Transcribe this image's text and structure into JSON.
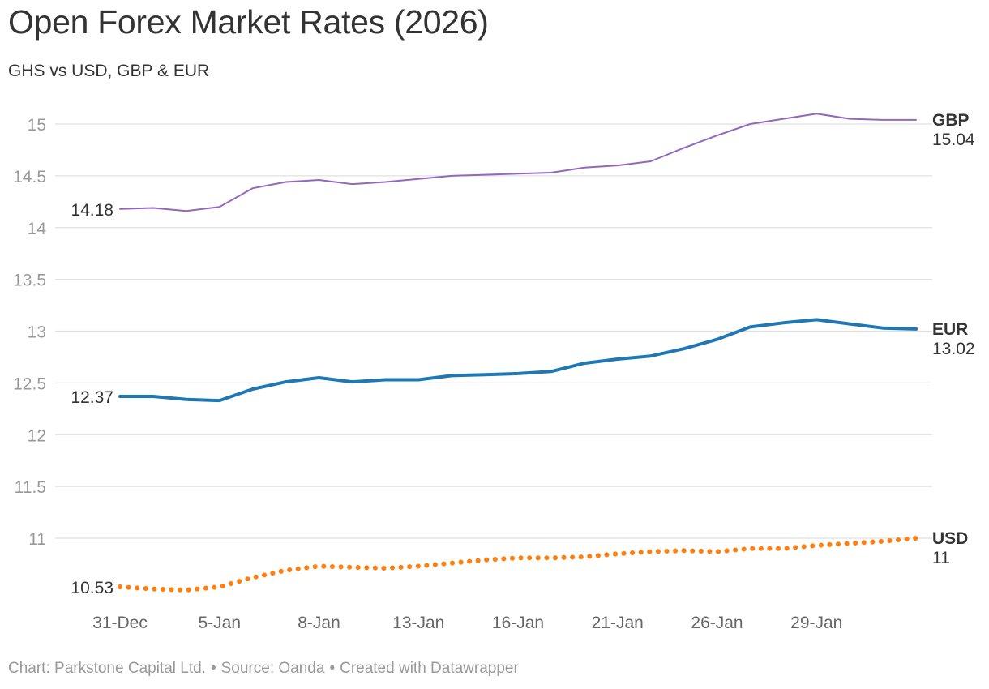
{
  "header": {
    "title": "Open Forex Market Rates (2026)",
    "subtitle": "GHS vs USD, GBP & EUR"
  },
  "footer": {
    "chart_credit": "Chart: Parkstone Capital Ltd.",
    "source": "Source: Oanda",
    "created_with": "Created with Datawrapper",
    "separator": "•"
  },
  "chart_data": {
    "type": "line",
    "title": "Open Forex Market Rates (2026)",
    "subtitle": "GHS vs USD, GBP & EUR",
    "xlabel": "",
    "ylabel": "",
    "ylim": [
      10.4,
      15.35
    ],
    "grid": true,
    "yticks": [
      11,
      11.5,
      12,
      12.5,
      13,
      13.5,
      14,
      14.5,
      15
    ],
    "ytick_labels": [
      "11",
      "11.5",
      "12",
      "12.5",
      "13",
      "13.5",
      "14",
      "14.5",
      "15"
    ],
    "x": [
      "31-Dec",
      "1-Jan",
      "2-Jan",
      "5-Jan",
      "6-Jan",
      "7-Jan",
      "8-Jan",
      "9-Jan",
      "12-Jan",
      "13-Jan",
      "14-Jan",
      "15-Jan",
      "16-Jan",
      "19-Jan",
      "20-Jan",
      "21-Jan",
      "22-Jan",
      "23-Jan",
      "26-Jan",
      "27-Jan",
      "28-Jan",
      "29-Jan",
      "30-Jan",
      "31-Jan",
      "1-Feb"
    ],
    "xtick_labels": [
      "31-Dec",
      "5-Jan",
      "8-Jan",
      "13-Jan",
      "16-Jan",
      "21-Jan",
      "26-Jan",
      "29-Jan"
    ],
    "colors": {
      "GBP": "#9467bd",
      "EUR": "#1f77b4",
      "USD": "#ff7f0e",
      "grid": "#e0e0e0",
      "tick_text": "#999999"
    },
    "series": [
      {
        "name": "GBP",
        "style": "solid-thin",
        "start_label": "14.18",
        "end_label": "15.04",
        "values": [
          14.18,
          14.19,
          14.16,
          14.2,
          14.38,
          14.44,
          14.46,
          14.42,
          14.44,
          14.47,
          14.5,
          14.51,
          14.52,
          14.53,
          14.58,
          14.6,
          14.64,
          14.77,
          14.89,
          15.0,
          15.05,
          15.1,
          15.05,
          15.04,
          15.04
        ]
      },
      {
        "name": "EUR",
        "style": "solid-thick",
        "start_label": "12.37",
        "end_label": "13.02",
        "values": [
          12.37,
          12.37,
          12.34,
          12.33,
          12.44,
          12.51,
          12.55,
          12.51,
          12.53,
          12.53,
          12.57,
          12.58,
          12.59,
          12.61,
          12.69,
          12.73,
          12.76,
          12.83,
          12.92,
          13.04,
          13.08,
          13.11,
          13.07,
          13.03,
          13.02
        ]
      },
      {
        "name": "USD",
        "style": "dotted",
        "start_label": "10.53",
        "end_label": "11",
        "values": [
          10.53,
          10.51,
          10.5,
          10.53,
          10.62,
          10.69,
          10.73,
          10.72,
          10.71,
          10.73,
          10.76,
          10.79,
          10.81,
          10.81,
          10.82,
          10.85,
          10.87,
          10.88,
          10.87,
          10.9,
          10.9,
          10.93,
          10.95,
          10.97,
          11.0
        ]
      }
    ]
  }
}
